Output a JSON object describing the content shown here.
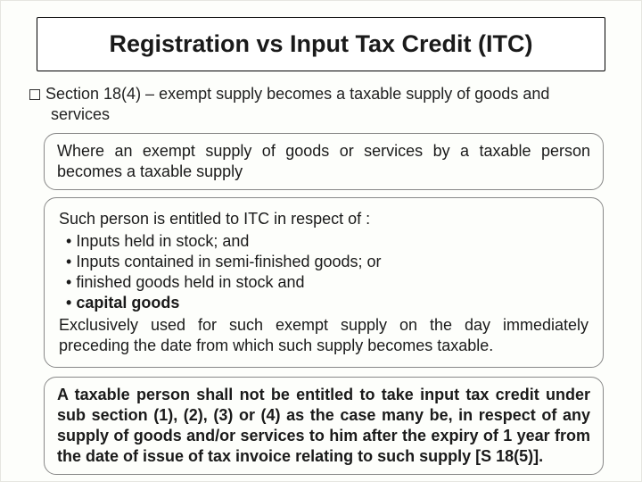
{
  "title": "Registration vs Input Tax Credit (ITC)",
  "section": {
    "heading_text": "Section 18(4) – exempt supply becomes a taxable supply of goods and services"
  },
  "callout1": {
    "text": "Where an exempt supply of goods or services by a taxable person becomes a taxable supply"
  },
  "callout2": {
    "intro": "Such person is entitled to ITC in respect of :",
    "bullets": [
      "Inputs held in stock; and",
      "Inputs contained in semi-finished goods; or",
      "finished goods held in stock and"
    ],
    "bullet_bold": "capital goods",
    "outro": "Exclusively used for such exempt supply on the day immediately preceding the date from which such supply becomes taxable."
  },
  "callout3": {
    "text": "A taxable person shall not be entitled to take input tax credit under sub section (1), (2), (3) or (4) as the case many be, in respect of  any supply of goods and/or services to him after the expiry of 1 year from the date of issue of tax invoice relating to such supply [S 18(5)]."
  },
  "colors": {
    "background": "#fdfefb",
    "text": "#1a1a1a",
    "border": "#888"
  }
}
